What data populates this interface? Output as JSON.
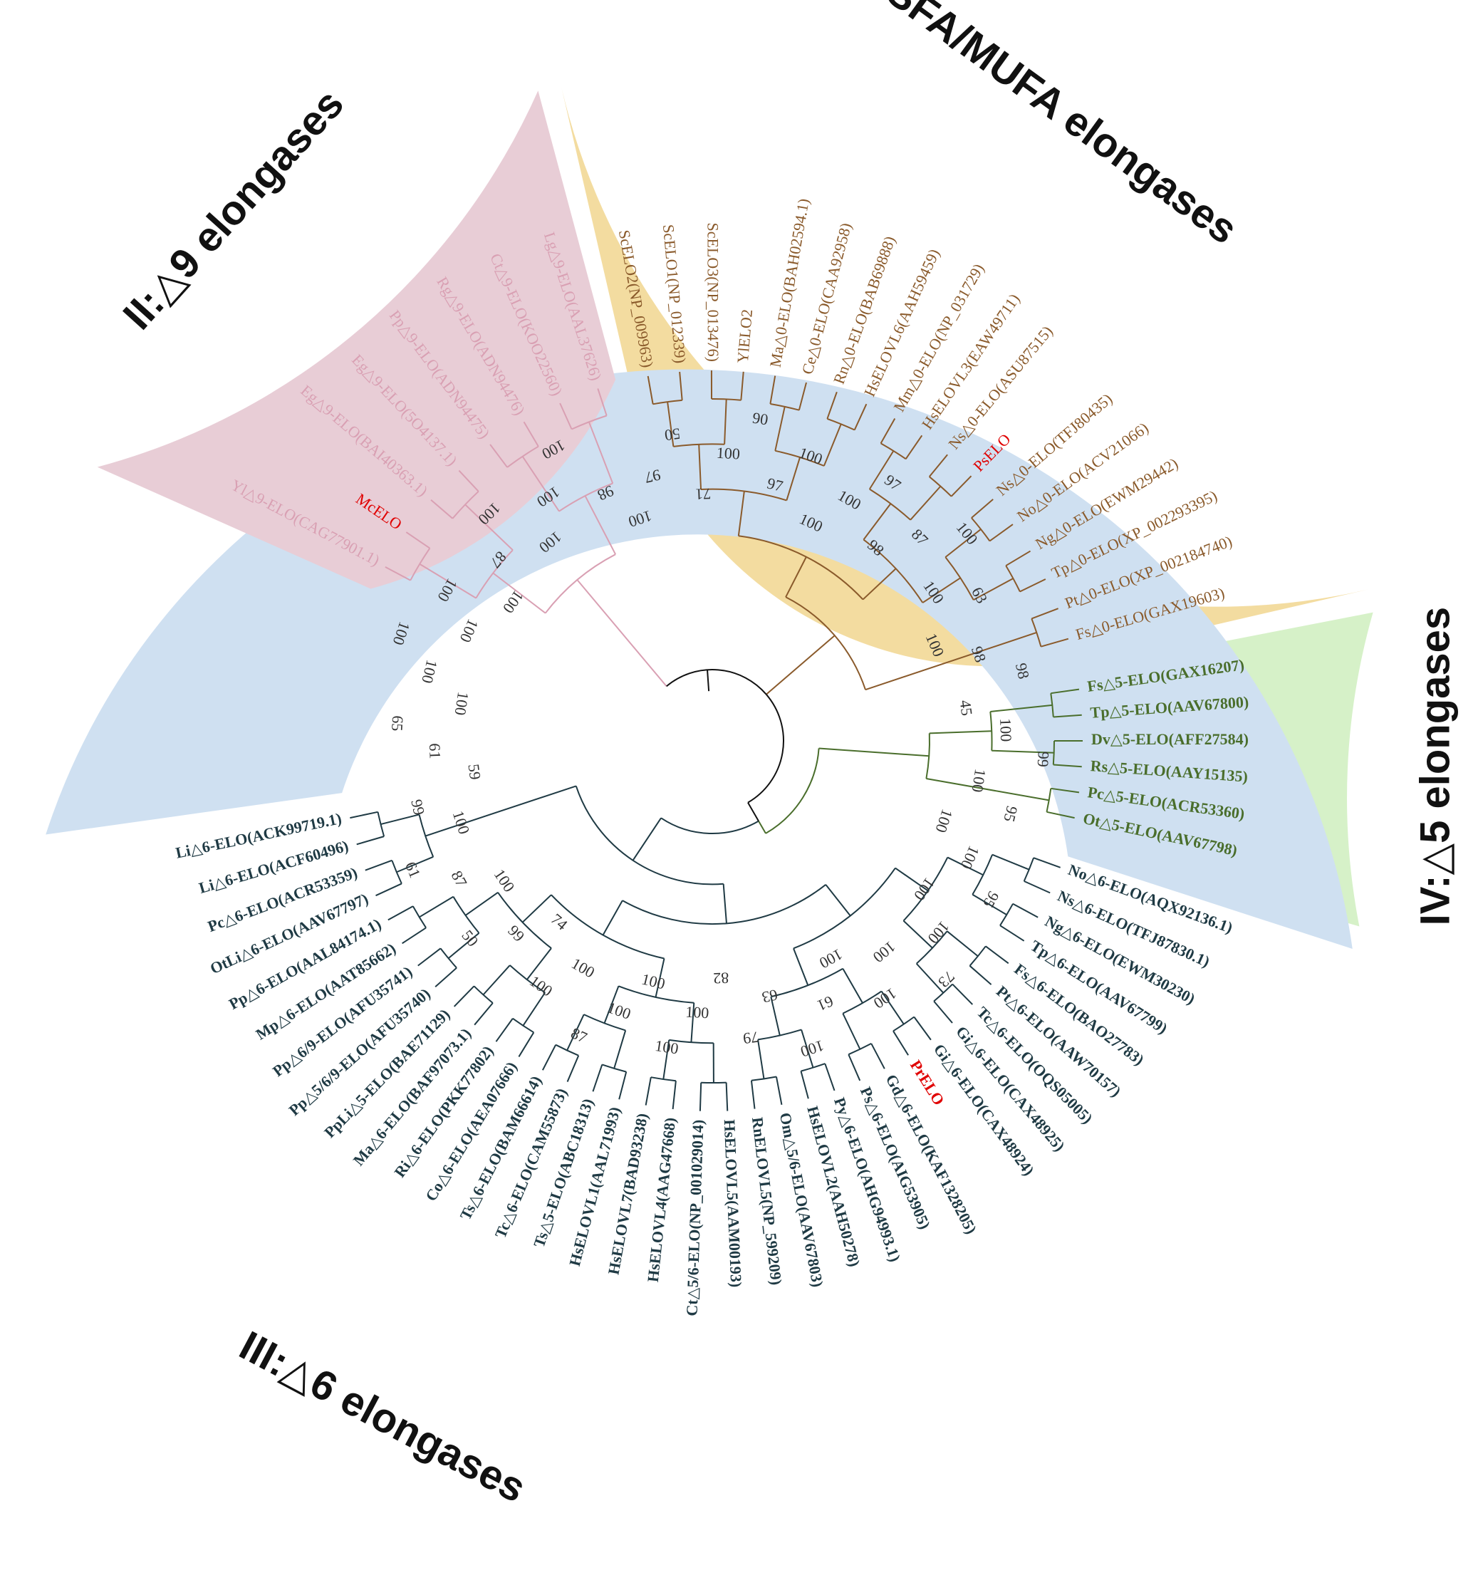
{
  "figure": {
    "colors": {
      "clade_I_fill": "#f3dca0",
      "clade_II_fill": "#e8cdd6",
      "clade_III_fill": "#cfe0f1",
      "clade_IV_fill": "#d6f1c8",
      "clade_I_branch": "#8a5a2b",
      "clade_II_branch": "#d9a0b3",
      "clade_III_branch": "#1f3a44",
      "clade_IV_branch": "#4a6e2c",
      "root_branch": "#111111",
      "highlight": "#e00000"
    },
    "clade_titles": [
      {
        "id": "I",
        "text": "I:SFA/MUFA elongases"
      },
      {
        "id": "II",
        "text": "II:△9 elongases"
      },
      {
        "id": "III",
        "text": "III:△6 elongases"
      },
      {
        "id": "IV",
        "text": "IV:△5 elongases"
      }
    ],
    "leaves": [
      {
        "text": "ScELO2(NP_009963)",
        "clade": "I"
      },
      {
        "text": "ScELO1(NP_012339)",
        "clade": "I"
      },
      {
        "text": "ScELO3(NP_013476)",
        "clade": "I"
      },
      {
        "text": "YlELO2",
        "clade": "I"
      },
      {
        "text": "Ma△0-ELO(BAH02594.1)",
        "clade": "I"
      },
      {
        "text": "Ce△0-ELO(CAA92958)",
        "clade": "I"
      },
      {
        "text": "Rn△0-ELO(BAB69888)",
        "clade": "I"
      },
      {
        "text": "HsELOVL6(AAH59459)",
        "clade": "I"
      },
      {
        "text": "Mm△0-ELO(NP_031729)",
        "clade": "I"
      },
      {
        "text": "HsELOVL3(EAW49711)",
        "clade": "I"
      },
      {
        "text": "Ns△0-ELO(ASU87515)",
        "clade": "I"
      },
      {
        "text": "PsELO",
        "clade": "I",
        "highlight": true
      },
      {
        "text": "Ns△0-ELO(TFJ80435)",
        "clade": "I"
      },
      {
        "text": "No△0-ELO(ACV21066)",
        "clade": "I"
      },
      {
        "text": "Ng△0-ELO(EWM29442)",
        "clade": "I"
      },
      {
        "text": "Tp△0-ELO(XP_002293395)",
        "clade": "I"
      },
      {
        "text": "Pt△0-ELO(XP_002184740)",
        "clade": "I"
      },
      {
        "text": "Fs△0-ELO(GAX19603)",
        "clade": "I"
      },
      {
        "text": "Fs△5-ELO(GAX16207)",
        "clade": "IV"
      },
      {
        "text": "Tp△5-ELO(AAV67800)",
        "clade": "IV"
      },
      {
        "text": "Dv△5-ELO(AFF27584)",
        "clade": "IV"
      },
      {
        "text": "Rs△5-ELO(AAY15135)",
        "clade": "IV"
      },
      {
        "text": "Pc△5-ELO(ACR53360)",
        "clade": "IV"
      },
      {
        "text": "Ot△5-ELO(AAV67798)",
        "clade": "IV"
      },
      {
        "text": "No△6-ELO(AQX92136.1)",
        "clade": "III"
      },
      {
        "text": "Ns△6-ELO(TFJ87830.1)",
        "clade": "III"
      },
      {
        "text": "Ng△6-ELO(EWM30230)",
        "clade": "III"
      },
      {
        "text": "Tp△6-ELO(AAV67799)",
        "clade": "III"
      },
      {
        "text": "Fs△6-ELO(BAO27783)",
        "clade": "III"
      },
      {
        "text": "Pt△6-ELO(AAW70157)",
        "clade": "III"
      },
      {
        "text": "Tc△6-ELO(OQS05005)",
        "clade": "III"
      },
      {
        "text": "Gi△6-ELO(CAX48925)",
        "clade": "III"
      },
      {
        "text": "Gi△6-ELO(CAX48924)",
        "clade": "III"
      },
      {
        "text": "PrELO",
        "clade": "III",
        "highlight": true
      },
      {
        "text": "Gd△6-ELO(KAF1328205)",
        "clade": "III"
      },
      {
        "text": "Ps△6-ELO(AIG53905)",
        "clade": "III"
      },
      {
        "text": "Py△6-ELO(AHG94993.1)",
        "clade": "III"
      },
      {
        "text": "HsELOVL2(AAH50278)",
        "clade": "III"
      },
      {
        "text": "Om△5/6-ELO(AAV67803)",
        "clade": "III"
      },
      {
        "text": "RnELOVL5(NP_599209)",
        "clade": "III"
      },
      {
        "text": "HsELOVL5(AAM00193)",
        "clade": "III"
      },
      {
        "text": "Ct△5/6-ELO(NP_001029014)",
        "clade": "III"
      },
      {
        "text": "HsELOVL4(AAG47668)",
        "clade": "III"
      },
      {
        "text": "HsELOVL7(BAD93238)",
        "clade": "III"
      },
      {
        "text": "HsELOVL1(AAL71993)",
        "clade": "III"
      },
      {
        "text": "Ts△5-ELO(ABC18313)",
        "clade": "III"
      },
      {
        "text": "Tc△6-ELO(CAM55873)",
        "clade": "III"
      },
      {
        "text": "Ts△6-ELO(BAM66614)",
        "clade": "III"
      },
      {
        "text": "Co△6-ELO(AEA07666)",
        "clade": "III"
      },
      {
        "text": "Ri△6-ELO(PKK77802)",
        "clade": "III"
      },
      {
        "text": "Ma△6-ELO(BAF97073.1)",
        "clade": "III"
      },
      {
        "text": "PpLi△5-ELO(BAE71129)",
        "clade": "III"
      },
      {
        "text": "Pp△5/6/9-ELO(AFU35740)",
        "clade": "III"
      },
      {
        "text": "Pp△6/9-ELO(AFU35741)",
        "clade": "III"
      },
      {
        "text": "Mp△6-ELO(AAT85662)",
        "clade": "III"
      },
      {
        "text": "Pp△6-ELO(AAL84174.1)",
        "clade": "III"
      },
      {
        "text": "OtLi△6-ELO(AAV67797)",
        "clade": "III"
      },
      {
        "text": "Pc△6-ELO(ACR53359)",
        "clade": "III"
      },
      {
        "text": "Li△6-ELO(ACF60496)",
        "clade": "III"
      },
      {
        "text": "Li△6-ELO(ACK99719.1)",
        "clade": "III"
      },
      {
        "text": "Yl△9-ELO(CAG77901.1)",
        "clade": "II"
      },
      {
        "text": "McELO",
        "clade": "II",
        "highlight": true
      },
      {
        "text": "Eg△9-ELO(BAI40363.1)",
        "clade": "II"
      },
      {
        "text": "Eg△9-ELO(5O4137.1)",
        "clade": "II"
      },
      {
        "text": "Pp△9-ELO(ADN94475)",
        "clade": "II"
      },
      {
        "text": "Rg△9-ELO(ADN94476)",
        "clade": "II"
      },
      {
        "text": "Ct△9-ELO(KOO22560)",
        "clade": "II"
      },
      {
        "text": "Lg△9-ELO(AAL37626)",
        "clade": "II"
      }
    ],
    "bootstrap_labels": [
      "100",
      "97",
      "50",
      "71",
      "100",
      "90",
      "97",
      "100",
      "100",
      "100",
      "97",
      "98",
      "87",
      "100",
      "100",
      "63",
      "100",
      "98",
      "98",
      "45",
      "100",
      "99",
      "100",
      "95",
      "100",
      "100",
      "95",
      "100",
      "100",
      "73",
      "100",
      "100",
      "100",
      "61",
      "100",
      "63",
      "79",
      "82",
      "100",
      "100",
      "100",
      "100",
      "87",
      "100",
      "100",
      "74",
      "99",
      "50",
      "100",
      "87",
      "61",
      "100",
      "99",
      "59",
      "61",
      "65",
      "100",
      "100",
      "100",
      "100",
      "100",
      "100",
      "87",
      "100",
      "100",
      "100",
      "100",
      "98"
    ]
  }
}
